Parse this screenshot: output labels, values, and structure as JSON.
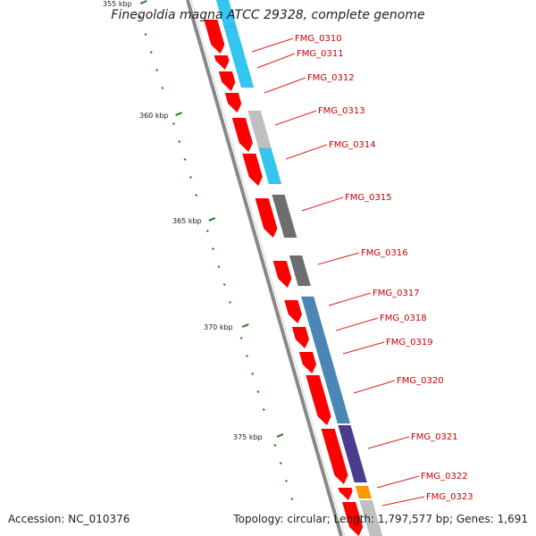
{
  "title": "Finegoldia magna ATCC 29328, complete genome",
  "footer": {
    "accession": "Accession: NC_010376",
    "topology": "Topology: circular; Length: 1,797,577 bp; Genes: 1,691"
  },
  "colors": {
    "forward_cds": "#ff0000",
    "gene_label": "#cc0000",
    "leader_line": "#dd2222",
    "backbone": "#888888",
    "tick": "#1a7a1a",
    "cyan": "#33c6f0",
    "light_gray": "#c0c0c0",
    "dark_gray": "#6e6e6e",
    "steel_blue": "#4a86b6",
    "indigo": "#4a3c8e",
    "orange": "#ff9900"
  },
  "ticks": [
    {
      "label": "355 kbp",
      "major": true
    },
    {
      "label": "360 kbp",
      "major": true
    },
    {
      "label": "365 kbp",
      "major": true
    },
    {
      "label": "370 kbp",
      "major": true
    },
    {
      "label": "375 kbp",
      "major": true
    }
  ],
  "genes": [
    {
      "name": "FMG_0310"
    },
    {
      "name": "FMG_0311"
    },
    {
      "name": "FMG_0312"
    },
    {
      "name": "FMG_0313"
    },
    {
      "name": "FMG_0314"
    },
    {
      "name": "FMG_0315"
    },
    {
      "name": "FMG_0316"
    },
    {
      "name": "FMG_0317"
    },
    {
      "name": "FMG_0318"
    },
    {
      "name": "FMG_0319"
    },
    {
      "name": "FMG_0320"
    },
    {
      "name": "FMG_0321"
    },
    {
      "name": "FMG_0322"
    },
    {
      "name": "FMG_0323"
    }
  ]
}
